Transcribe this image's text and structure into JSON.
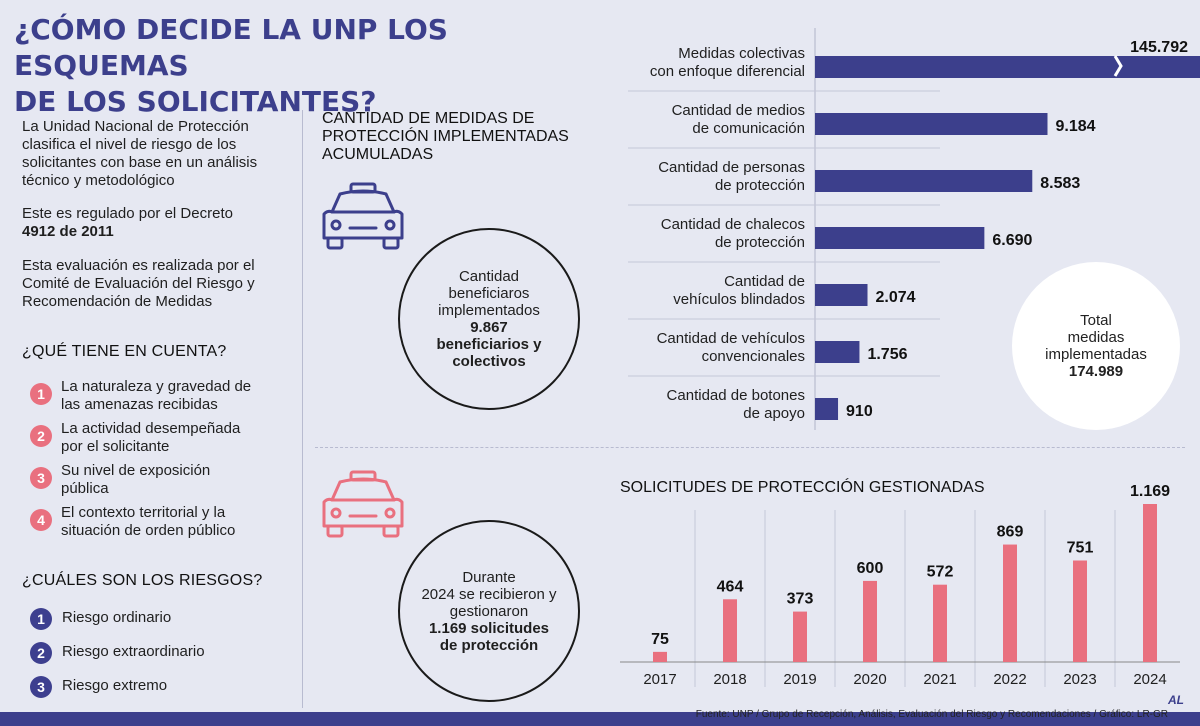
{
  "title_line1": "¿CÓMO DECIDE LA UNP LOS ESQUEMAS",
  "title_line2": "DE LOS SOLICITANTES?",
  "intro": {
    "p1": "La Unidad Nacional de Protección clasifica el nivel de riesgo de los solicitantes con base en un análisis técnico y metodológico",
    "p2_text": "Este es regulado por el Decreto",
    "p2_bold": "4912 de 2011",
    "p3": "Esta evaluación es realizada por el Comité de Evaluación del Riesgo y Recomendación de Medidas"
  },
  "que_tiene": {
    "heading": "¿QUÉ TIENE EN CUENTA?",
    "items": [
      {
        "num": "1",
        "line1": "La naturaleza y gravedad de",
        "line2": "las amenazas recibidas"
      },
      {
        "num": "2",
        "line1": "La actividad desempeñada",
        "line2": "por el solicitante"
      },
      {
        "num": "3",
        "line1": "Su nivel de exposición",
        "line2": "pública"
      },
      {
        "num": "4",
        "line1": "El contexto territorial y la",
        "line2": "situación de orden público"
      }
    ]
  },
  "riesgos": {
    "heading": "¿CUÁLES SON LOS RIESGOS?",
    "items": [
      {
        "num": "1",
        "label": "Riesgo ordinario"
      },
      {
        "num": "2",
        "label": "Riesgo extraordinario"
      },
      {
        "num": "3",
        "label": "Riesgo extremo"
      }
    ]
  },
  "medidas_section": {
    "heading_line1": "CANTIDAD DE MEDIDAS DE",
    "heading_line2": "PROTECCIÓN IMPLEMENTADAS",
    "heading_line3": "ACUMULADAS",
    "circle_line1": "Cantidad",
    "circle_line2": "beneficiaros",
    "circle_line3": "implementados",
    "circle_bold1": "9.867",
    "circle_bold2": "beneficiarios y",
    "circle_bold3": "colectivos"
  },
  "total": {
    "line1": "Total",
    "line2": "medidas",
    "line3": "implementadas",
    "value": "174.989"
  },
  "solicitudes_section": {
    "circle_line1": "Durante",
    "circle_line2": "2024 se recibieron y",
    "circle_line3": "gestionaron",
    "circle_bold1": "1.169 solicitudes",
    "circle_bold2": "de protección"
  },
  "source": "Fuente: UNP / Grupo de Recepción, Análisis, Evaluación del Riesgo y Recomendaciones / Gráfico: LR-GR",
  "logo": "AL",
  "colors": {
    "navy": "#3c3f8c",
    "pink": "#e9707f",
    "background": "#e6e8f2"
  },
  "icons": {
    "car_top": "police-car-icon",
    "car_bottom": "police-car-icon"
  },
  "chart_data": [
    {
      "type": "bar",
      "orientation": "horizontal",
      "title": "",
      "categories": [
        [
          "Medidas colectivas",
          "con enfoque diferencial"
        ],
        [
          "Cantidad de medios",
          "de comunicación"
        ],
        [
          "Cantidad de personas",
          "de protección"
        ],
        [
          "Cantidad de chalecos",
          "de protección"
        ],
        [
          "Cantidad de",
          "vehículos blindados"
        ],
        [
          "Cantidad de vehículos",
          "convencionales"
        ],
        [
          "Cantidad de botones",
          "de apoyo"
        ]
      ],
      "values": [
        145792,
        9184,
        8583,
        6690,
        2074,
        1756,
        910
      ],
      "value_labels": [
        "145.792",
        "9.184",
        "8.583",
        "6.690",
        "2.074",
        "1.756",
        "910"
      ],
      "truncated_first_bar": true,
      "color": "#3c3f8c"
    },
    {
      "type": "bar",
      "orientation": "vertical",
      "title": "SOLICITUDES DE PROTECCIÓN GESTIONADAS",
      "categories": [
        "2017",
        "2018",
        "2019",
        "2020",
        "2021",
        "2022",
        "2023",
        "2024"
      ],
      "values": [
        75,
        464,
        373,
        600,
        572,
        869,
        751,
        1169
      ],
      "value_labels": [
        "75",
        "464",
        "373",
        "600",
        "572",
        "869",
        "751",
        "1.169"
      ],
      "ylim": [
        0,
        1169
      ],
      "color": "#e9707f"
    }
  ]
}
